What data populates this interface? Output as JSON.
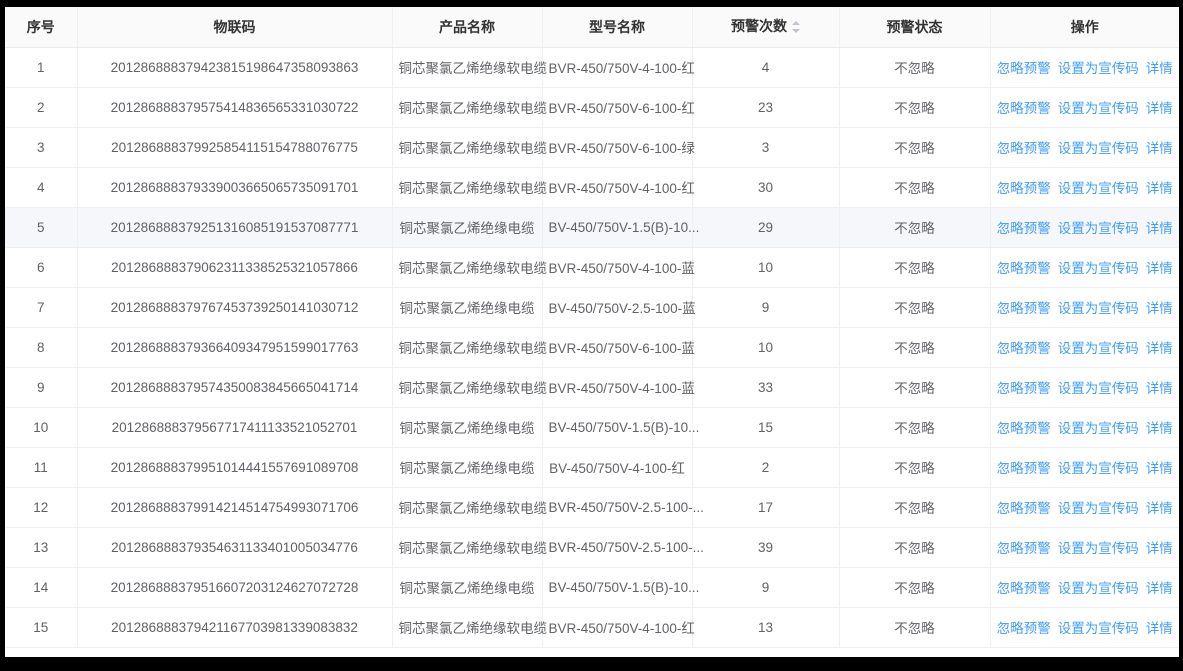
{
  "table": {
    "columns": [
      {
        "key": "index",
        "label": "序号"
      },
      {
        "key": "iot_code",
        "label": "物联码"
      },
      {
        "key": "product_name",
        "label": "产品名称"
      },
      {
        "key": "model_name",
        "label": "型号名称"
      },
      {
        "key": "warn_count",
        "label": "预警次数",
        "sortable": true
      },
      {
        "key": "warn_status",
        "label": "预警状态"
      },
      {
        "key": "actions",
        "label": "操作"
      }
    ],
    "action_labels": [
      "忽略预警",
      "设置为宣传码",
      "详情"
    ],
    "action_names": [
      "ignore-warning-link",
      "set-promo-code-link",
      "detail-link"
    ],
    "rows": [
      {
        "index": "1",
        "iot_code": "201286888379423815198647358093863",
        "product_name": "铜芯聚氯乙烯绝缘软电缆",
        "model_name": "BVR-450/750V-4-100-红",
        "warn_count": "4",
        "warn_status": "不忽略",
        "highlighted": false
      },
      {
        "index": "2",
        "iot_code": "201286888379575414836565331030722",
        "product_name": "铜芯聚氯乙烯绝缘软电缆",
        "model_name": "BVR-450/750V-6-100-红",
        "warn_count": "23",
        "warn_status": "不忽略",
        "highlighted": false
      },
      {
        "index": "3",
        "iot_code": "201286888379925854115154788076775",
        "product_name": "铜芯聚氯乙烯绝缘软电缆",
        "model_name": "BVR-450/750V-6-100-绿",
        "warn_count": "3",
        "warn_status": "不忽略",
        "highlighted": false
      },
      {
        "index": "4",
        "iot_code": "201286888379339003665065735091701",
        "product_name": "铜芯聚氯乙烯绝缘软电缆",
        "model_name": "BVR-450/750V-4-100-红",
        "warn_count": "30",
        "warn_status": "不忽略",
        "highlighted": false
      },
      {
        "index": "5",
        "iot_code": "201286888379251316085191537087771",
        "product_name": "铜芯聚氯乙烯绝缘电缆",
        "model_name": "BV-450/750V-1.5(B)-10...",
        "warn_count": "29",
        "warn_status": "不忽略",
        "highlighted": true
      },
      {
        "index": "6",
        "iot_code": "201286888379062311338525321057866",
        "product_name": "铜芯聚氯乙烯绝缘软电缆",
        "model_name": "BVR-450/750V-4-100-蓝",
        "warn_count": "10",
        "warn_status": "不忽略",
        "highlighted": false
      },
      {
        "index": "7",
        "iot_code": "201286888379767453739250141030712",
        "product_name": "铜芯聚氯乙烯绝缘电缆",
        "model_name": "BV-450/750V-2.5-100-蓝",
        "warn_count": "9",
        "warn_status": "不忽略",
        "highlighted": false
      },
      {
        "index": "8",
        "iot_code": "201286888379366409347951599017763",
        "product_name": "铜芯聚氯乙烯绝缘软电缆",
        "model_name": "BVR-450/750V-6-100-蓝",
        "warn_count": "10",
        "warn_status": "不忽略",
        "highlighted": false
      },
      {
        "index": "9",
        "iot_code": "201286888379574350083845665041714",
        "product_name": "铜芯聚氯乙烯绝缘软电缆",
        "model_name": "BVR-450/750V-4-100-蓝",
        "warn_count": "33",
        "warn_status": "不忽略",
        "highlighted": false
      },
      {
        "index": "10",
        "iot_code": "201286888379567717411133521052701",
        "product_name": "铜芯聚氯乙烯绝缘电缆",
        "model_name": "BV-450/750V-1.5(B)-10...",
        "warn_count": "15",
        "warn_status": "不忽略",
        "highlighted": false
      },
      {
        "index": "11",
        "iot_code": "201286888379951014441557691089708",
        "product_name": "铜芯聚氯乙烯绝缘电缆",
        "model_name": "BV-450/750V-4-100-红",
        "warn_count": "2",
        "warn_status": "不忽略",
        "highlighted": false
      },
      {
        "index": "12",
        "iot_code": "201286888379914214514754993071706",
        "product_name": "铜芯聚氯乙烯绝缘软电缆",
        "model_name": "BVR-450/750V-2.5-100-...",
        "warn_count": "17",
        "warn_status": "不忽略",
        "highlighted": false
      },
      {
        "index": "13",
        "iot_code": "201286888379354631133401005034776",
        "product_name": "铜芯聚氯乙烯绝缘软电缆",
        "model_name": "BVR-450/750V-2.5-100-...",
        "warn_count": "39",
        "warn_status": "不忽略",
        "highlighted": false
      },
      {
        "index": "14",
        "iot_code": "201286888379516607203124627072728",
        "product_name": "铜芯聚氯乙烯绝缘电缆",
        "model_name": "BV-450/750V-1.5(B)-10...",
        "warn_count": "9",
        "warn_status": "不忽略",
        "highlighted": false
      },
      {
        "index": "15",
        "iot_code": "201286888379421167703981339083832",
        "product_name": "铜芯聚氯乙烯绝缘软电缆",
        "model_name": "BVR-450/750V-4-100-红",
        "warn_count": "13",
        "warn_status": "不忽略",
        "highlighted": false
      }
    ]
  },
  "colors": {
    "link": "#409eff",
    "header_bg": "#fafafa",
    "border": "#ebeef5",
    "row_hover_bg": "#f5f7fa",
    "sort_caret": "#c0c4cc",
    "frame_bg": "#000000"
  }
}
